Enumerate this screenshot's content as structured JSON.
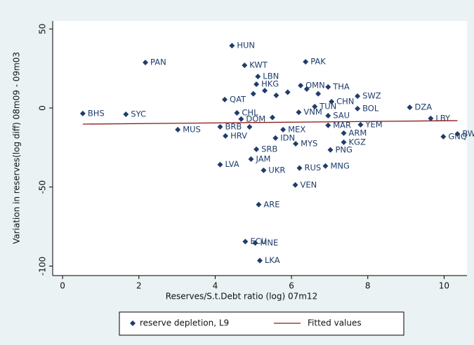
{
  "chart_data": {
    "type": "scatter",
    "x_label": "Reserves/S.t.Debt ratio (log) 07m12",
    "y_label": "Variation in reserves(log diff) 08m09 - 09m03",
    "xlim": [
      -0.26,
      10.6
    ],
    "ylim": [
      -106,
      55
    ],
    "xticks": [
      0,
      2,
      4,
      6,
      8,
      10
    ],
    "yticks": [
      50,
      0,
      -50,
      -100
    ],
    "series": [
      {
        "name": "reserve depletion, L9",
        "color": "#1f3d6b",
        "style": "markers",
        "labels": [
          "HUN",
          "PAK",
          "PAN",
          "KWT",
          "LBN",
          "HKG",
          "OMN",
          "THA",
          "SWZ",
          "QAT",
          "CHN",
          "BOL",
          "DZA",
          "BHS",
          "SYC",
          "SAU",
          "LBY",
          "YEM",
          "MAR",
          "MUS",
          "BW",
          "GNQ",
          "ARM",
          "KGZ",
          "MYS",
          "PNG",
          "SRB",
          "HRV",
          "BRB",
          "LVA",
          "JAM",
          "UKR",
          "RUS",
          "MNG",
          "VEN",
          "ARE",
          "ECU",
          "MNE",
          "LKA",
          "CHL",
          "DOM",
          "MEX",
          "IDN",
          "VNM",
          "TUN",
          null,
          null,
          null,
          null,
          null,
          null,
          null,
          null
        ],
        "x": [
          4.44,
          6.37,
          2.17,
          4.77,
          5.12,
          5.08,
          6.24,
          6.96,
          7.73,
          4.25,
          7.05,
          7.73,
          9.1,
          0.53,
          1.66,
          6.96,
          9.65,
          7.81,
          6.96,
          3.02,
          10.35,
          9.98,
          7.37,
          7.37,
          6.11,
          7.02,
          5.08,
          4.27,
          4.13,
          4.13,
          4.94,
          5.27,
          6.21,
          6.89,
          6.1,
          5.14,
          4.79,
          5.05,
          5.17,
          4.57,
          4.68,
          5.78,
          5.58,
          6.19,
          6.61,
          5.0,
          5.3,
          5.6,
          5.9,
          6.4,
          6.7,
          4.9,
          5.5
        ],
        "values": [
          39.4,
          29.2,
          28.8,
          27,
          19.9,
          15,
          14.2,
          13.3,
          7.5,
          5.3,
          4,
          -0.4,
          0.4,
          -3.5,
          -4,
          -4.9,
          -6.6,
          -10.6,
          -11,
          -13.7,
          -16.4,
          -18.1,
          -15.9,
          -21.7,
          -22.6,
          -26.5,
          -26.1,
          -17.7,
          -11.9,
          -35.8,
          -32.3,
          -39.4,
          -38,
          -36.7,
          -48.7,
          -61.1,
          -84.5,
          -85.4,
          -96.5,
          -3.1,
          -7,
          -13.7,
          -19,
          -2.7,
          0.9,
          9,
          11,
          8,
          10,
          12,
          9,
          -12,
          -6
        ]
      },
      {
        "name": "Fitted values",
        "color": "#8b1a1a",
        "style": "line",
        "x": [
          0.53,
          10.35
        ],
        "values": [
          -10.2,
          -8
        ]
      }
    ]
  }
}
